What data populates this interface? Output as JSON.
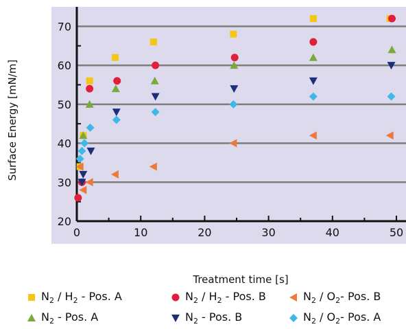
{
  "chart_data": {
    "type": "scatter",
    "xlabel": "Treatment time [s]",
    "ylabel": "Surface Energy [mN/m]",
    "xlim": [
      0,
      50
    ],
    "ylim": [
      20,
      75
    ],
    "xticks": [
      "0",
      "10",
      "20",
      "30",
      "40",
      "50"
    ],
    "yticks": [
      "20",
      "30",
      "40",
      "50",
      "60",
      "70"
    ],
    "grid": "horizontal",
    "legend_position": "bottom",
    "series": [
      {
        "name": "N2 / H2 - Pos. A",
        "color": "#f5c518",
        "marker": "square",
        "points": [
          [
            0.5,
            34
          ],
          [
            1,
            42
          ],
          [
            2,
            56
          ],
          [
            6,
            62
          ],
          [
            12,
            66
          ],
          [
            24.5,
            68
          ],
          [
            37,
            72
          ],
          [
            49,
            72
          ]
        ]
      },
      {
        "name": "N2 / H2 - Pos. B",
        "color": "#e01f3d",
        "marker": "circle",
        "points": [
          [
            0.2,
            26
          ],
          [
            0.8,
            30
          ],
          [
            2,
            54
          ],
          [
            6.3,
            56
          ],
          [
            12.3,
            60
          ],
          [
            24.7,
            62
          ],
          [
            37,
            66
          ],
          [
            49.3,
            72
          ]
        ]
      },
      {
        "name": "N2 / O2- Pos. B",
        "color": "#ec7a3c",
        "marker": "triangle-left",
        "points": [
          [
            0.5,
            34
          ],
          [
            1,
            28
          ],
          [
            2,
            30
          ],
          [
            6,
            32
          ],
          [
            12,
            34
          ],
          [
            24.5,
            40
          ],
          [
            37,
            42
          ],
          [
            49,
            42
          ]
        ]
      },
      {
        "name": "N2 - Pos. A",
        "color": "#7aab3a",
        "marker": "triangle-up",
        "points": [
          [
            1,
            42
          ],
          [
            2,
            50
          ],
          [
            6.1,
            54
          ],
          [
            12.2,
            56
          ],
          [
            24.6,
            60
          ],
          [
            37,
            62
          ],
          [
            49.3,
            64
          ]
        ]
      },
      {
        "name": "N2 - Pos. B",
        "color": "#1e2f7a",
        "marker": "triangle-down",
        "points": [
          [
            0.8,
            30
          ],
          [
            1,
            32
          ],
          [
            2.2,
            38
          ],
          [
            6.2,
            48
          ],
          [
            12.3,
            52
          ],
          [
            24.6,
            54
          ],
          [
            37,
            56
          ],
          [
            49.2,
            60
          ]
        ]
      },
      {
        "name": "N2 / O2- Pos. A",
        "color": "#3fb8e8",
        "marker": "diamond",
        "points": [
          [
            0.5,
            36
          ],
          [
            0.8,
            38
          ],
          [
            1.2,
            40
          ],
          [
            2.1,
            44
          ],
          [
            6.2,
            46
          ],
          [
            12.3,
            48
          ],
          [
            24.5,
            50
          ],
          [
            37,
            52
          ],
          [
            49.2,
            52
          ]
        ]
      }
    ]
  },
  "legend": [
    {
      "pre": "N",
      "sub1": "2",
      "mid": " / H",
      "sub2": "2",
      "post": " - Pos. A"
    },
    {
      "pre": "N",
      "sub1": "2",
      "mid": " / H",
      "sub2": "2",
      "post": " - Pos. B"
    },
    {
      "pre": "N",
      "sub1": "2",
      "mid": " / O",
      "sub2": "2",
      "post": "- Pos. B"
    },
    {
      "pre": "N",
      "sub1": "2",
      "mid": " - Pos. A",
      "sub2": "",
      "post": ""
    },
    {
      "pre": "N",
      "sub1": "2",
      "mid": " - Pos. B",
      "sub2": "",
      "post": ""
    },
    {
      "pre": "N",
      "sub1": "2",
      "mid": " / O",
      "sub2": "2",
      "post": "- Pos. A"
    }
  ]
}
